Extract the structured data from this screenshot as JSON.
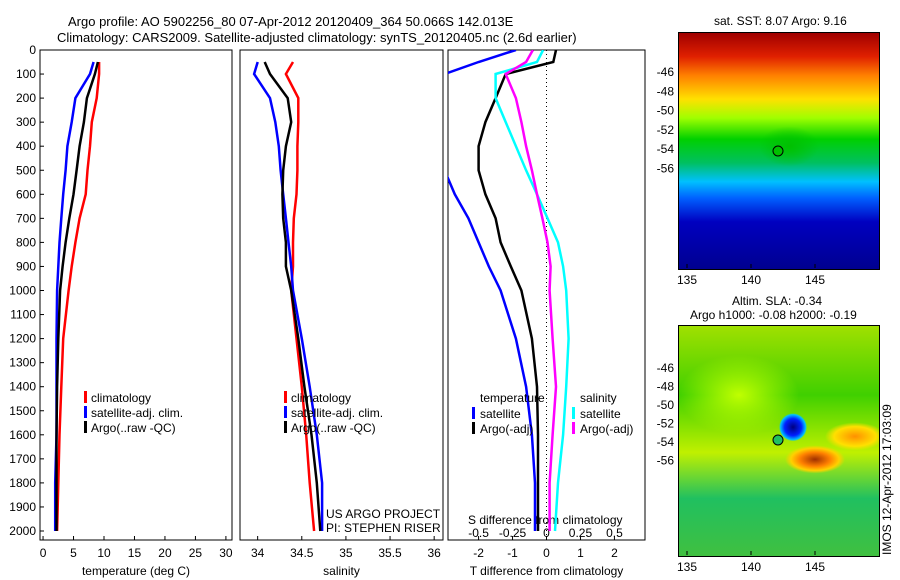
{
  "title_line1": "Argo profile: AO 5902256_80 07-Apr-2012 20120409_364 50.066S 142.013E",
  "title_line2": "Climatology: CARS2009. Satellite-adjusted climatology: synTS_20120405.nc (2.6d earlier)",
  "colors": {
    "climatology": "#ff0000",
    "satellite": "#0000ff",
    "argo": "#000000",
    "sal_sat": "#00ffff",
    "sal_argo": "#ff00ff"
  },
  "chart_data": [
    {
      "type": "line",
      "title": "",
      "xlabel": "temperature (deg C)",
      "ylabel": "",
      "xlim": [
        -0.5,
        31
      ],
      "ylim": [
        2050,
        0
      ],
      "xticks": [
        "0",
        "5",
        "10",
        "15",
        "20",
        "25",
        "30"
      ],
      "yticks": [
        "0",
        "100",
        "200",
        "300",
        "400",
        "500",
        "600",
        "700",
        "800",
        "900",
        "1000",
        "1100",
        "1200",
        "1300",
        "1400",
        "1500",
        "1600",
        "1700",
        "1800",
        "1900",
        "2000"
      ],
      "depth": [
        50,
        100,
        200,
        300,
        400,
        500,
        600,
        700,
        800,
        900,
        1000,
        1200,
        1400,
        1600,
        1800,
        2000
      ],
      "series": [
        {
          "name": "climatology",
          "color": "#ff0000",
          "values": [
            9.2,
            9.2,
            8.8,
            8.0,
            7.7,
            7.3,
            7.0,
            6.0,
            5.3,
            4.7,
            4.2,
            3.3,
            3.0,
            2.7,
            2.5,
            2.3
          ]
        },
        {
          "name": "satellite-adj. clim.",
          "color": "#0000ff",
          "values": [
            8.3,
            7.7,
            5.3,
            4.7,
            4.0,
            3.7,
            3.3,
            3.0,
            2.7,
            2.5,
            2.3,
            2.2,
            2.2,
            2.2,
            2.0,
            2.0
          ]
        },
        {
          "name": "Argo(..raw -QC)",
          "color": "#000000",
          "values": [
            9.0,
            8.5,
            7.2,
            6.7,
            6.0,
            5.5,
            5.0,
            4.3,
            3.7,
            3.2,
            2.8,
            2.5,
            2.3,
            2.2,
            2.2,
            2.2
          ]
        }
      ]
    },
    {
      "type": "line",
      "xlabel": "salinity",
      "xlim": [
        33.8,
        36.1
      ],
      "ylim": [
        2050,
        0
      ],
      "xticks": [
        "34",
        "34.5",
        "35",
        "35.5",
        "36"
      ],
      "depth": [
        50,
        100,
        200,
        300,
        400,
        500,
        600,
        700,
        800,
        900,
        1000,
        1200,
        1400,
        1600,
        1800,
        2000
      ],
      "series": [
        {
          "name": "climatology",
          "color": "#ff0000",
          "values": [
            34.4,
            34.32,
            34.46,
            34.46,
            34.45,
            34.45,
            34.44,
            34.41,
            34.4,
            34.4,
            34.38,
            34.44,
            34.5,
            34.55,
            34.59,
            34.64
          ]
        },
        {
          "name": "satellite-adj. clim.",
          "color": "#0000ff",
          "values": [
            34.0,
            33.96,
            34.14,
            34.2,
            34.24,
            34.26,
            34.29,
            34.32,
            34.35,
            34.38,
            34.4,
            34.5,
            34.59,
            34.67,
            34.73,
            34.73
          ]
        },
        {
          "name": "Argo(..raw -QC)",
          "color": "#000000",
          "values": [
            34.08,
            34.14,
            34.34,
            34.38,
            34.32,
            34.29,
            34.28,
            34.29,
            34.32,
            34.32,
            34.38,
            34.46,
            34.53,
            34.61,
            34.67,
            34.71
          ]
        }
      ],
      "annotation": [
        "US ARGO PROJECT",
        "PI: STEPHEN RISER"
      ]
    },
    {
      "type": "line",
      "xlabel": "T difference from climatology",
      "top_xlabel": "S difference from climatology",
      "xlim": [
        -2.9,
        2.9
      ],
      "ylim": [
        2050,
        0
      ],
      "xticks": [
        "-2",
        "-1",
        "0",
        "1",
        "2"
      ],
      "top_xticks": [
        "-0.5",
        "-0.25",
        "0",
        "0.25",
        "0.5"
      ],
      "legend_headers": [
        "temperature",
        "salinity"
      ],
      "depth": [
        0,
        50,
        100,
        200,
        300,
        400,
        500,
        600,
        700,
        800,
        900,
        1000,
        1200,
        1400,
        1600,
        1800,
        2000
      ],
      "series": [
        {
          "name": "satellite",
          "group": "temperature",
          "color": "#0000ff",
          "values": [
            -0.9,
            -2.0,
            -3.0,
            -3.0,
            -3.0,
            -3.0,
            -3.0,
            -2.7,
            -2.3,
            -2.0,
            -1.7,
            -1.35,
            -0.9,
            -0.6,
            -0.43,
            -0.34,
            -0.34
          ]
        },
        {
          "name": "Argo(-adj)",
          "group": "temperature",
          "color": "#000000",
          "values": [
            0.28,
            0.2,
            -1.2,
            -1.5,
            -1.8,
            -2.0,
            -2.0,
            -1.8,
            -1.5,
            -1.35,
            -1.05,
            -0.74,
            -0.43,
            -0.28,
            -0.25,
            -0.25,
            -0.25
          ]
        },
        {
          "name": "satellite",
          "group": "salinity",
          "color": "#00ffff",
          "values": [
            -0.1,
            -0.28,
            -1.5,
            -1.5,
            -1.2,
            -0.9,
            -0.6,
            -0.28,
            0.03,
            0.34,
            0.49,
            0.58,
            0.65,
            0.58,
            0.49,
            0.34,
            0.25
          ]
        },
        {
          "name": "Argo(-adj)",
          "group": "salinity",
          "color": "#ff00ff",
          "values": [
            -0.4,
            -0.6,
            -1.2,
            -0.9,
            -0.74,
            -0.6,
            -0.43,
            -0.28,
            -0.12,
            0.03,
            0.12,
            0.09,
            0.18,
            0.28,
            0.18,
            0.09,
            0.09
          ]
        }
      ]
    }
  ],
  "maps": [
    {
      "title": "sat. SST: 8.07  Argo: 9.16",
      "xticks": [
        "135",
        "140",
        "145"
      ],
      "yticks": [
        "-46",
        "-48",
        "-50",
        "-52",
        "-54",
        "-56"
      ]
    },
    {
      "title_line1": "Altim. SLA: -0.34",
      "title_line2": "Argo h1000: -0.08  h2000: -0.19",
      "xticks": [
        "135",
        "140",
        "145"
      ],
      "yticks": [
        "-46",
        "-48",
        "-50",
        "-52",
        "-54",
        "-56"
      ],
      "side_label": "IMOS 12-Apr-2012 17:03:09"
    }
  ]
}
